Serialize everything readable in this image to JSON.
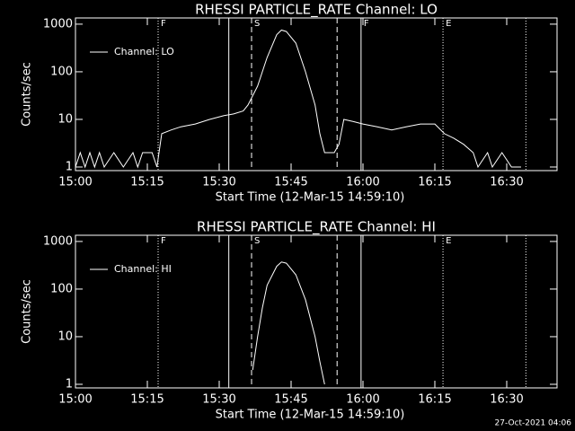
{
  "chart_data": [
    {
      "type": "line",
      "title": "RHESSI PARTICLE_RATE Channel: LO",
      "xlabel": "Start Time (12-Mar-15 14:59:10)",
      "ylabel": "Counts/sec",
      "log_y": true,
      "xlim": [
        "15:00",
        "16:40:30"
      ],
      "ylim": [
        0.84,
        1350
      ],
      "xticks": [
        "15:00",
        "15:15",
        "15:30",
        "15:45",
        "16:00",
        "16:15",
        "16:30"
      ],
      "yticks": [
        1,
        10,
        100,
        1000
      ],
      "legend": "upper left",
      "series": [
        {
          "name": "Channel: LO",
          "color": "#ffffff",
          "x": [
            "15:00",
            "15:01",
            "15:02",
            "15:03",
            "15:04",
            "15:05",
            "15:06",
            "15:08",
            "15:10",
            "15:12",
            "15:13",
            "15:14",
            "15:16",
            "15:17",
            "15:18",
            "15:20",
            "15:22",
            "15:25",
            "15:28",
            "15:31",
            "15:33",
            "15:35",
            "15:36",
            "15:38",
            "15:40",
            "15:42",
            "15:43",
            "15:44",
            "15:46",
            "15:48",
            "15:50",
            "15:51",
            "15:52",
            "15:54",
            "15:55",
            "15:56",
            "15:58",
            "16:00",
            "16:03",
            "16:06",
            "16:09",
            "16:12",
            "16:15",
            "16:17",
            "16:19",
            "16:21",
            "16:23",
            "16:24",
            "16:26",
            "16:27",
            "16:29",
            "16:31",
            "16:33"
          ],
          "values": [
            1,
            2,
            1,
            2,
            1,
            2,
            1,
            2,
            1,
            2,
            1,
            2,
            2,
            1,
            5,
            6,
            7,
            8,
            10,
            12,
            13,
            15,
            20,
            50,
            200,
            600,
            750,
            700,
            400,
            100,
            20,
            5,
            2,
            2,
            3,
            10,
            9,
            8,
            7,
            6,
            7,
            8,
            8,
            5,
            4,
            3,
            2,
            1,
            2,
            1,
            2,
            1,
            1
          ]
        }
      ],
      "markers": [
        {
          "x": "15:17:15",
          "style": "dotted",
          "label": "F"
        },
        {
          "x": "15:32",
          "style": "solid"
        },
        {
          "x": "15:36:45",
          "style": "dashed",
          "label": "S"
        },
        {
          "x": "15:54:36",
          "style": "dashed"
        },
        {
          "x": "15:59:36",
          "style": "solid",
          "label": "F"
        },
        {
          "x": "16:16:42",
          "style": "dotted",
          "label": "E"
        },
        {
          "x": "16:34",
          "style": "dotted"
        }
      ]
    },
    {
      "type": "line",
      "title": "RHESSI PARTICLE_RATE Channel: HI",
      "xlabel": "Start Time (12-Mar-15 14:59:10)",
      "ylabel": "Counts/sec",
      "log_y": true,
      "xlim": [
        "15:00",
        "16:40:30"
      ],
      "ylim": [
        0.84,
        1350
      ],
      "xticks": [
        "15:00",
        "15:15",
        "15:30",
        "15:45",
        "16:00",
        "16:15",
        "16:30"
      ],
      "yticks": [
        1,
        10,
        100,
        1000
      ],
      "legend": "upper left",
      "series": [
        {
          "name": "Channel: HI",
          "color": "#ffffff",
          "x": [
            "15:37",
            "15:38",
            "15:39",
            "15:40",
            "15:42",
            "15:43",
            "15:44",
            "15:46",
            "15:48",
            "15:50",
            "15:51",
            "15:52"
          ],
          "values": [
            2,
            10,
            40,
            120,
            300,
            370,
            350,
            200,
            60,
            10,
            3,
            1
          ]
        }
      ],
      "markers": [
        {
          "x": "15:17:15",
          "style": "dotted",
          "label": "F"
        },
        {
          "x": "15:32",
          "style": "solid"
        },
        {
          "x": "15:36:45",
          "style": "dashed",
          "label": "S"
        },
        {
          "x": "15:54:36",
          "style": "dashed"
        },
        {
          "x": "15:59:36",
          "style": "solid"
        },
        {
          "x": "16:16:42",
          "style": "dotted",
          "label": "E"
        },
        {
          "x": "16:34",
          "style": "dotted"
        }
      ]
    }
  ],
  "footer": "27-Oct-2021 04:06"
}
